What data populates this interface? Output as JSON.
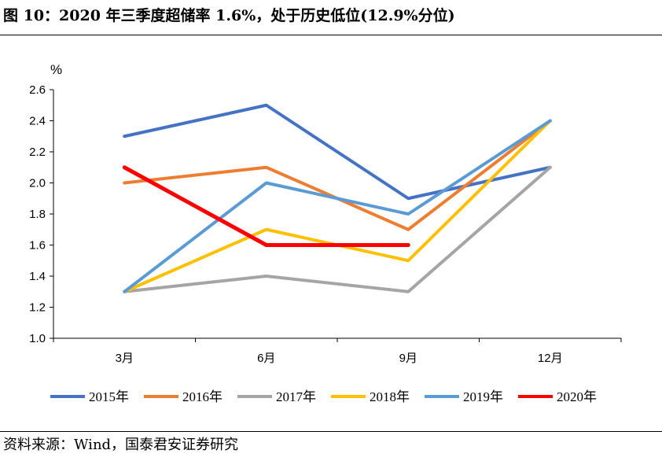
{
  "header": {
    "title": "图 10：2020 年三季度超储率 1.6%，处于历史低位(12.9%分位)"
  },
  "footer": {
    "source": "资料来源：Wind，国泰君安证券研究"
  },
  "chart_data": {
    "type": "line",
    "unit_label": "%",
    "categories": [
      "3月",
      "6月",
      "9月",
      "12月"
    ],
    "ylim": [
      1.0,
      2.6
    ],
    "yticks": [
      "1.0",
      "1.2",
      "1.4",
      "1.6",
      "1.8",
      "2.0",
      "2.2",
      "2.4",
      "2.6"
    ],
    "grid": false,
    "legend_position": "bottom",
    "series": [
      {
        "name": "2015年",
        "color": "#4472C4",
        "values": [
          2.3,
          2.5,
          1.9,
          2.1
        ]
      },
      {
        "name": "2016年",
        "color": "#ED7D31",
        "values": [
          2.0,
          2.1,
          1.7,
          2.4
        ]
      },
      {
        "name": "2017年",
        "color": "#A5A5A5",
        "values": [
          1.3,
          1.4,
          1.3,
          2.1
        ]
      },
      {
        "name": "2018年",
        "color": "#FFC000",
        "values": [
          1.3,
          1.7,
          1.5,
          2.4
        ]
      },
      {
        "name": "2019年",
        "color": "#5B9BD5",
        "values": [
          1.3,
          2.0,
          1.8,
          2.4
        ]
      },
      {
        "name": "2020年",
        "color": "#FF0000",
        "values": [
          2.1,
          1.6,
          1.6,
          null
        ]
      }
    ]
  }
}
